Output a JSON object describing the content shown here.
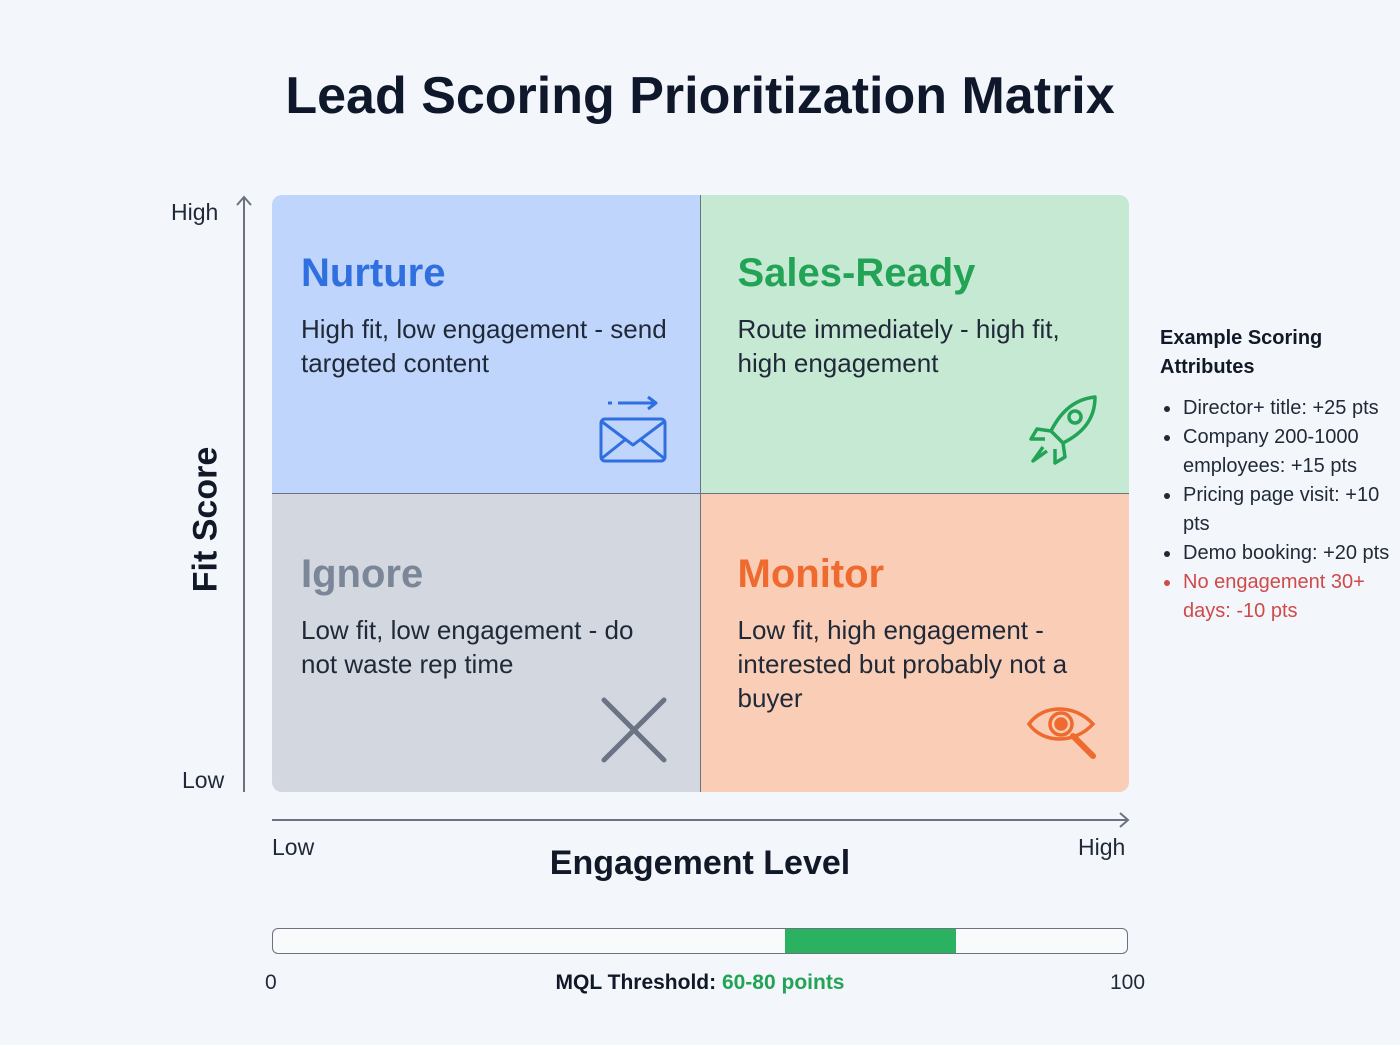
{
  "title": "Lead Scoring Prioritization Matrix",
  "y_axis": {
    "label": "Fit Score",
    "high": "High",
    "low": "Low"
  },
  "x_axis": {
    "label": "Engagement Level",
    "high": "High",
    "low": "Low"
  },
  "quadrants": {
    "nurture": {
      "title": "Nurture",
      "desc": "High fit, low engagement - send targeted content",
      "color": "#2f6fe0",
      "icon": "envelope-arrow-icon"
    },
    "sales": {
      "title": "Sales-Ready",
      "desc": "Route immediately - high fit, high engagement",
      "color": "#22a356",
      "icon": "rocket-icon"
    },
    "ignore": {
      "title": "Ignore",
      "desc": "Low fit, low engagement - do not waste rep time",
      "color": "#7b8699",
      "icon": "x-icon"
    },
    "monitor": {
      "title": "Monitor",
      "desc": "Low fit, high engagement - interested but probably not a buyer",
      "color": "#ef6a2e",
      "icon": "eye-magnifier-icon"
    }
  },
  "attributes": {
    "title": "Example Scoring Attributes",
    "items": [
      "Director+ title: +25 pts",
      "Company 200-1000 employees: +15 pts",
      "Pricing page visit: +10 pts",
      "Demo booking: +20 pts",
      "No engagement 30+ days: -10 pts"
    ]
  },
  "threshold": {
    "min": "0",
    "max": "100",
    "label": "MQL Threshold:",
    "value": "60-80 points",
    "range": [
      60,
      80
    ],
    "scale": [
      0,
      100
    ]
  }
}
